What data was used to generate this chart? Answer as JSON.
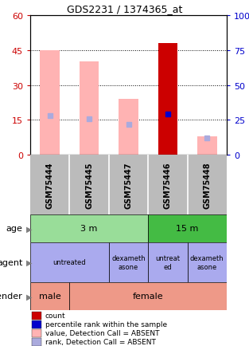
{
  "title": "GDS2231 / 1374365_at",
  "samples": [
    "GSM75444",
    "GSM75445",
    "GSM75447",
    "GSM75446",
    "GSM75448"
  ],
  "bar_values": [
    45,
    40,
    24,
    48,
    8
  ],
  "bar_colors": [
    "#ffb3b3",
    "#ffb3b3",
    "#ffb3b3",
    "#cc0000",
    "#ffb3b3"
  ],
  "rank_values": [
    28,
    26,
    22,
    29,
    12
  ],
  "rank_is_absent": [
    true,
    true,
    true,
    false,
    true
  ],
  "ylim_left": [
    0,
    60
  ],
  "ylim_right": [
    0,
    100
  ],
  "yticks_left": [
    0,
    15,
    30,
    45,
    60
  ],
  "yticks_right": [
    0,
    25,
    50,
    75,
    100
  ],
  "left_axis_color": "#cc0000",
  "right_axis_color": "#0000cc",
  "age_labels": [
    [
      "3 m",
      0,
      3
    ],
    [
      "15 m",
      3,
      5
    ]
  ],
  "agent_labels": [
    [
      "untreated",
      0,
      2
    ],
    [
      "dexameth\nasone",
      2,
      3
    ],
    [
      "untreat\ned",
      3,
      4
    ],
    [
      "dexameth\nasone",
      4,
      5
    ]
  ],
  "gender_labels": [
    [
      "male",
      0,
      1
    ],
    [
      "female",
      1,
      5
    ]
  ],
  "age_colors": [
    "#99dd99",
    "#44bb44"
  ],
  "agent_color": "#aaaaee",
  "gender_color": "#ee9988",
  "sample_box_color": "#bbbbbb",
  "bg_color": "#ffffff",
  "bar_width": 0.5,
  "legend_items": [
    {
      "color": "#cc0000",
      "label": "count"
    },
    {
      "color": "#0000cc",
      "label": "percentile rank within the sample"
    },
    {
      "color": "#ffb3b3",
      "label": "value, Detection Call = ABSENT"
    },
    {
      "color": "#aaaadd",
      "label": "rank, Detection Call = ABSENT"
    }
  ]
}
